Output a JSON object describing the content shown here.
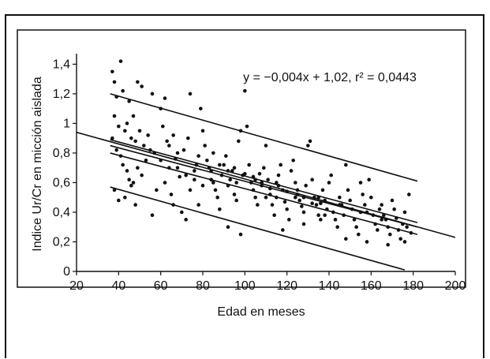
{
  "chart_data": {
    "type": "scatter",
    "title": "",
    "xlabel": "Edad en meses",
    "ylabel": "Indice Ur/Cr en micción aislada",
    "xlim": [
      20,
      200
    ],
    "ylim": [
      0,
      1.45
    ],
    "xticks": [
      20,
      40,
      60,
      80,
      100,
      120,
      140,
      160,
      180,
      200
    ],
    "yticks": [
      0,
      0.2,
      0.4,
      0.6,
      0.8,
      1,
      1.2,
      1.4
    ],
    "ytick_labels": [
      "0",
      "0,2",
      "0,4",
      "0,6",
      "0,8",
      "1",
      "1,2",
      "1,4"
    ],
    "annotation": "y = −0,004x + 1,02, r² = 0,0443",
    "grid": false,
    "regression": {
      "slope": -0.004,
      "intercept": 1.02
    },
    "lines": [
      {
        "x": [
          36,
          182
        ],
        "y": [
          1.2,
          0.61
        ]
      },
      {
        "x": [
          20,
          200
        ],
        "y": [
          0.94,
          0.23
        ]
      },
      {
        "x": [
          36,
          182
        ],
        "y": [
          0.89,
          0.33
        ]
      },
      {
        "x": [
          36,
          182
        ],
        "y": [
          0.85,
          0.3
        ]
      },
      {
        "x": [
          36,
          182
        ],
        "y": [
          0.8,
          0.25
        ]
      },
      {
        "x": [
          36,
          176
        ],
        "y": [
          0.57,
          0.01
        ]
      }
    ],
    "points": [
      [
        37,
        1.35
      ],
      [
        38,
        1.28
      ],
      [
        39,
        1.18
      ],
      [
        41,
        1.42
      ],
      [
        42,
        1.22
      ],
      [
        45,
        1.15
      ],
      [
        47,
        1.05
      ],
      [
        49,
        1.28
      ],
      [
        51,
        1.25
      ],
      [
        56,
        1.2
      ],
      [
        38,
        1.05
      ],
      [
        40,
        0.98
      ],
      [
        43,
        0.95
      ],
      [
        44,
        1.0
      ],
      [
        46,
        0.9
      ],
      [
        48,
        0.88
      ],
      [
        50,
        0.95
      ],
      [
        52,
        0.85
      ],
      [
        54,
        0.92
      ],
      [
        55,
        0.82
      ],
      [
        37,
        0.9
      ],
      [
        39,
        0.82
      ],
      [
        41,
        0.78
      ],
      [
        42,
        0.72
      ],
      [
        44,
        0.68
      ],
      [
        45,
        0.62
      ],
      [
        47,
        0.6
      ],
      [
        49,
        0.7
      ],
      [
        53,
        0.75
      ],
      [
        57,
        0.8
      ],
      [
        38,
        0.55
      ],
      [
        40,
        0.48
      ],
      [
        43,
        0.5
      ],
      [
        46,
        0.58
      ],
      [
        48,
        0.45
      ],
      [
        51,
        0.65
      ],
      [
        56,
        0.38
      ],
      [
        58,
        0.55
      ],
      [
        60,
        1.1
      ],
      [
        62,
        1.17
      ],
      [
        61,
        0.98
      ],
      [
        63,
        0.88
      ],
      [
        64,
        0.85
      ],
      [
        66,
        0.92
      ],
      [
        67,
        0.76
      ],
      [
        68,
        0.7
      ],
      [
        69,
        0.64
      ],
      [
        71,
        0.82
      ],
      [
        73,
        0.9
      ],
      [
        74,
        1.2
      ],
      [
        62,
        0.6
      ],
      [
        65,
        0.52
      ],
      [
        66,
        0.45
      ],
      [
        70,
        0.4
      ],
      [
        72,
        0.35
      ],
      [
        74,
        0.55
      ],
      [
        76,
        0.62
      ],
      [
        77,
        0.72
      ],
      [
        78,
        0.78
      ],
      [
        79,
        1.1
      ],
      [
        80,
        0.95
      ],
      [
        81,
        0.85
      ],
      [
        82,
        0.75
      ],
      [
        83,
        0.7
      ],
      [
        84,
        0.68
      ],
      [
        85,
        0.6
      ],
      [
        86,
        0.55
      ],
      [
        87,
        0.5
      ],
      [
        88,
        0.42
      ],
      [
        89,
        0.65
      ],
      [
        90,
        0.72
      ],
      [
        91,
        0.78
      ],
      [
        92,
        0.58
      ],
      [
        93,
        0.62
      ],
      [
        94,
        0.68
      ],
      [
        95,
        0.52
      ],
      [
        96,
        0.48
      ],
      [
        97,
        0.88
      ],
      [
        98,
        0.95
      ],
      [
        99,
        0.65
      ],
      [
        100,
        1.22
      ],
      [
        101,
        0.98
      ],
      [
        102,
        0.72
      ],
      [
        103,
        0.6
      ],
      [
        104,
        0.55
      ],
      [
        105,
        0.5
      ],
      [
        106,
        0.45
      ],
      [
        107,
        0.66
      ],
      [
        108,
        0.58
      ],
      [
        109,
        0.7
      ],
      [
        110,
        0.85
      ],
      [
        111,
        0.62
      ],
      [
        112,
        0.52
      ],
      [
        113,
        0.45
      ],
      [
        114,
        0.38
      ],
      [
        115,
        0.5
      ],
      [
        116,
        0.65
      ],
      [
        117,
        0.72
      ],
      [
        118,
        0.55
      ],
      [
        119,
        0.47
      ],
      [
        120,
        0.42
      ],
      [
        121,
        0.35
      ],
      [
        122,
        0.68
      ],
      [
        123,
        0.75
      ],
      [
        124,
        0.6
      ],
      [
        125,
        0.52
      ],
      [
        126,
        0.48
      ],
      [
        127,
        0.44
      ],
      [
        128,
        0.4
      ],
      [
        129,
        0.58
      ],
      [
        130,
        0.85
      ],
      [
        131,
        0.88
      ],
      [
        132,
        0.62
      ],
      [
        133,
        0.5
      ],
      [
        134,
        0.45
      ],
      [
        135,
        0.38
      ],
      [
        136,
        0.35
      ],
      [
        137,
        0.55
      ],
      [
        138,
        0.48
      ],
      [
        139,
        0.42
      ],
      [
        140,
        0.6
      ],
      [
        141,
        0.65
      ],
      [
        142,
        0.4
      ],
      [
        143,
        0.35
      ],
      [
        144,
        0.3
      ],
      [
        145,
        0.5
      ],
      [
        146,
        0.45
      ],
      [
        147,
        0.38
      ],
      [
        148,
        0.72
      ],
      [
        149,
        0.55
      ],
      [
        150,
        0.48
      ],
      [
        151,
        0.42
      ],
      [
        152,
        0.35
      ],
      [
        153,
        0.3
      ],
      [
        154,
        0.25
      ],
      [
        155,
        0.6
      ],
      [
        156,
        0.52
      ],
      [
        157,
        0.45
      ],
      [
        158,
        0.4
      ],
      [
        159,
        0.62
      ],
      [
        160,
        0.5
      ],
      [
        161,
        0.38
      ],
      [
        162,
        0.32
      ],
      [
        163,
        0.28
      ],
      [
        164,
        0.42
      ],
      [
        165,
        0.45
      ],
      [
        166,
        0.38
      ],
      [
        167,
        0.35
      ],
      [
        168,
        0.3
      ],
      [
        169,
        0.25
      ],
      [
        170,
        0.48
      ],
      [
        171,
        0.42
      ],
      [
        172,
        0.36
      ],
      [
        173,
        0.28
      ],
      [
        174,
        0.22
      ],
      [
        175,
        0.32
      ],
      [
        176,
        0.4
      ],
      [
        177,
        0.3
      ],
      [
        178,
        0.52
      ],
      [
        179,
        0.26
      ],
      [
        85,
        0.8
      ],
      [
        95,
        0.7
      ],
      [
        105,
        0.62
      ],
      [
        115,
        0.6
      ],
      [
        125,
        0.55
      ],
      [
        135,
        0.5
      ],
      [
        145,
        0.45
      ],
      [
        155,
        0.4
      ],
      [
        165,
        0.35
      ],
      [
        110,
        0.5
      ],
      [
        92,
        0.3
      ],
      [
        98,
        0.25
      ],
      [
        118,
        0.28
      ],
      [
        128,
        0.32
      ],
      [
        138,
        0.38
      ],
      [
        148,
        0.22
      ],
      [
        158,
        0.2
      ],
      [
        168,
        0.18
      ],
      [
        176,
        0.2
      ],
      [
        78,
        0.45
      ],
      [
        60,
        0.75
      ],
      [
        64,
        0.7
      ],
      [
        68,
        0.8
      ],
      [
        72,
        0.65
      ],
      [
        76,
        0.68
      ],
      [
        80,
        0.58
      ],
      [
        84,
        0.62
      ],
      [
        88,
        0.72
      ],
      [
        92,
        0.68
      ],
      [
        96,
        0.6
      ],
      [
        100,
        0.66
      ],
      [
        104,
        0.64
      ],
      [
        108,
        0.6
      ],
      [
        112,
        0.56
      ],
      [
        116,
        0.58
      ],
      [
        120,
        0.54
      ],
      [
        124,
        0.5
      ],
      [
        128,
        0.5
      ],
      [
        132,
        0.46
      ],
      [
        136,
        0.46
      ]
    ]
  }
}
